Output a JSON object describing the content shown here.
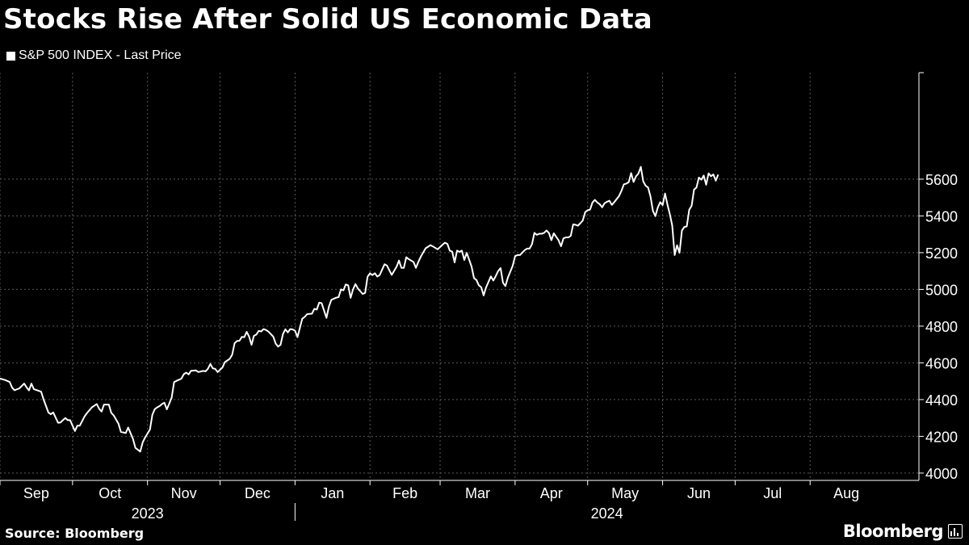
{
  "title": "Stocks Rise After Solid US Economic Data",
  "source": "Source: Bloomberg",
  "logo": "Bloomberg",
  "colors": {
    "background": "#000000",
    "line": "#ffffff",
    "grid": "#5a5a5a",
    "text": "#ffffff"
  },
  "chart_data": {
    "type": "line",
    "legend": "S&P 500 INDEX - Last Price",
    "legend_position": "top-left",
    "grid": true,
    "y_axis_side": "right",
    "ylim": [
      3960,
      6180
    ],
    "yticks": [
      4000,
      4200,
      4400,
      4600,
      4800,
      5000,
      5200,
      5400,
      5600
    ],
    "x_start_day": 0,
    "x_end_day": 380,
    "months": [
      {
        "label": "Sep",
        "day": 0
      },
      {
        "label": "Oct",
        "day": 30
      },
      {
        "label": "Nov",
        "day": 61
      },
      {
        "label": "Dec",
        "day": 91
      },
      {
        "label": "Jan",
        "day": 122
      },
      {
        "label": "Feb",
        "day": 153
      },
      {
        "label": "Mar",
        "day": 182
      },
      {
        "label": "Apr",
        "day": 213
      },
      {
        "label": "May",
        "day": 243
      },
      {
        "label": "Jun",
        "day": 274
      },
      {
        "label": "Jul",
        "day": 304
      },
      {
        "label": "Aug",
        "day": 335
      }
    ],
    "years": [
      {
        "label": "2023",
        "from_day": 0,
        "to_day": 122
      },
      {
        "label": "2024",
        "from_day": 122,
        "to_day": 380
      }
    ],
    "series": [
      {
        "name": "S&P 500 INDEX - Last Price",
        "points": [
          [
            0,
            4515
          ],
          [
            2,
            4507
          ],
          [
            4,
            4496
          ],
          [
            5,
            4465
          ],
          [
            6,
            4451
          ],
          [
            8,
            4461
          ],
          [
            10,
            4487
          ],
          [
            11,
            4467
          ],
          [
            12,
            4450
          ],
          [
            13,
            4487
          ],
          [
            14,
            4457
          ],
          [
            17,
            4443
          ],
          [
            18,
            4402
          ],
          [
            20,
            4330
          ],
          [
            21,
            4320
          ],
          [
            22,
            4330
          ],
          [
            24,
            4274
          ],
          [
            25,
            4275
          ],
          [
            26,
            4288
          ],
          [
            27,
            4300
          ],
          [
            28,
            4288
          ],
          [
            29,
            4288
          ],
          [
            31,
            4229
          ],
          [
            32,
            4258
          ],
          [
            33,
            4258
          ],
          [
            35,
            4309
          ],
          [
            36,
            4327
          ],
          [
            38,
            4358
          ],
          [
            40,
            4376
          ],
          [
            41,
            4350
          ],
          [
            42,
            4335
          ],
          [
            43,
            4373
          ],
          [
            45,
            4373
          ],
          [
            46,
            4328
          ],
          [
            47,
            4314
          ],
          [
            49,
            4269
          ],
          [
            50,
            4224
          ],
          [
            52,
            4218
          ],
          [
            53,
            4248
          ],
          [
            54,
            4217
          ],
          [
            55,
            4186
          ],
          [
            56,
            4137
          ],
          [
            58,
            4117
          ],
          [
            59,
            4167
          ],
          [
            60,
            4194
          ],
          [
            62,
            4237
          ],
          [
            63,
            4318
          ],
          [
            64,
            4348
          ],
          [
            65,
            4358
          ],
          [
            66,
            4365
          ],
          [
            67,
            4376
          ],
          [
            68,
            4383
          ],
          [
            69,
            4347
          ],
          [
            70,
            4378
          ],
          [
            71,
            4411
          ],
          [
            72,
            4495
          ],
          [
            73,
            4502
          ],
          [
            74,
            4508
          ],
          [
            75,
            4514
          ],
          [
            76,
            4538
          ],
          [
            77,
            4547
          ],
          [
            78,
            4537
          ],
          [
            79,
            4557
          ],
          [
            81,
            4559
          ],
          [
            82,
            4550
          ],
          [
            84,
            4556
          ],
          [
            85,
            4554
          ],
          [
            86,
            4568
          ],
          [
            87,
            4594
          ],
          [
            88,
            4570
          ],
          [
            89,
            4567
          ],
          [
            90,
            4550
          ],
          [
            92,
            4575
          ],
          [
            93,
            4604
          ],
          [
            95,
            4622
          ],
          [
            96,
            4644
          ],
          [
            97,
            4707
          ],
          [
            98,
            4719
          ],
          [
            99,
            4720
          ],
          [
            100,
            4741
          ],
          [
            101,
            4740
          ],
          [
            102,
            4769
          ],
          [
            103,
            4743
          ],
          [
            104,
            4698
          ],
          [
            105,
            4747
          ],
          [
            106,
            4754
          ],
          [
            107,
            4774
          ],
          [
            108,
            4771
          ],
          [
            109,
            4784
          ],
          [
            110,
            4779
          ],
          [
            111,
            4770
          ],
          [
            113,
            4743
          ],
          [
            114,
            4705
          ],
          [
            115,
            4689
          ],
          [
            116,
            4698
          ],
          [
            117,
            4757
          ],
          [
            118,
            4783
          ],
          [
            119,
            4766
          ],
          [
            120,
            4784
          ],
          [
            121,
            4782
          ],
          [
            122,
            4775
          ],
          [
            123,
            4740
          ],
          [
            125,
            4840
          ],
          [
            126,
            4850
          ],
          [
            127,
            4865
          ],
          [
            129,
            4868
          ],
          [
            130,
            4894
          ],
          [
            131,
            4890
          ],
          [
            132,
            4928
          ],
          [
            133,
            4925
          ],
          [
            135,
            4845
          ],
          [
            136,
            4906
          ],
          [
            137,
            4943
          ],
          [
            139,
            4955
          ],
          [
            140,
            4958
          ],
          [
            141,
            5000
          ],
          [
            142,
            4995
          ],
          [
            143,
            5027
          ],
          [
            144,
            5022
          ],
          [
            145,
            4954
          ],
          [
            146,
            5000
          ],
          [
            147,
            5029
          ],
          [
            148,
            5005
          ],
          [
            150,
            4975
          ],
          [
            151,
            4981
          ],
          [
            152,
            5069
          ],
          [
            153,
            5088
          ],
          [
            154,
            5078
          ],
          [
            155,
            5088
          ],
          [
            156,
            5070
          ],
          [
            157,
            5078
          ],
          [
            159,
            5137
          ],
          [
            160,
            5130
          ],
          [
            162,
            5079
          ],
          [
            164,
            5123
          ],
          [
            165,
            5157
          ],
          [
            166,
            5117
          ],
          [
            167,
            5117
          ],
          [
            168,
            5175
          ],
          [
            169,
            5165
          ],
          [
            171,
            5149
          ],
          [
            172,
            5117
          ],
          [
            173,
            5150
          ],
          [
            174,
            5178
          ],
          [
            176,
            5224
          ],
          [
            178,
            5241
          ],
          [
            179,
            5234
          ],
          [
            181,
            5218
          ],
          [
            183,
            5243
          ],
          [
            184,
            5254
          ],
          [
            185,
            5248
          ],
          [
            186,
            5211
          ],
          [
            187,
            5205
          ],
          [
            188,
            5147
          ],
          [
            189,
            5211
          ],
          [
            190,
            5204
          ],
          [
            191,
            5211
          ],
          [
            192,
            5160
          ],
          [
            193,
            5199
          ],
          [
            195,
            5124
          ],
          [
            196,
            5061
          ],
          [
            197,
            5051
          ],
          [
            198,
            5022
          ],
          [
            199,
            5011
          ],
          [
            200,
            4967
          ],
          [
            201,
            5010
          ],
          [
            203,
            5071
          ],
          [
            204,
            5048
          ],
          [
            205,
            5072
          ],
          [
            206,
            5100
          ],
          [
            207,
            5116
          ],
          [
            208,
            5036
          ],
          [
            209,
            5018
          ],
          [
            210,
            5064
          ],
          [
            212,
            5128
          ],
          [
            213,
            5181
          ],
          [
            214,
            5187
          ],
          [
            215,
            5187
          ],
          [
            217,
            5214
          ],
          [
            218,
            5222
          ],
          [
            219,
            5222
          ],
          [
            220,
            5246
          ],
          [
            221,
            5308
          ],
          [
            222,
            5297
          ],
          [
            223,
            5303
          ],
          [
            224,
            5303
          ],
          [
            225,
            5308
          ],
          [
            226,
            5321
          ],
          [
            227,
            5307
          ],
          [
            228,
            5268
          ],
          [
            229,
            5305
          ],
          [
            231,
            5267
          ],
          [
            232,
            5235
          ],
          [
            233,
            5278
          ],
          [
            234,
            5283
          ],
          [
            235,
            5283
          ],
          [
            236,
            5291
          ],
          [
            237,
            5354
          ],
          [
            238,
            5352
          ],
          [
            239,
            5347
          ],
          [
            240,
            5360
          ],
          [
            241,
            5375
          ],
          [
            242,
            5421
          ],
          [
            243,
            5431
          ],
          [
            244,
            5434
          ],
          [
            245,
            5473
          ],
          [
            246,
            5487
          ],
          [
            247,
            5473
          ],
          [
            248,
            5464
          ],
          [
            249,
            5447
          ],
          [
            250,
            5469
          ],
          [
            251,
            5477
          ],
          [
            252,
            5483
          ],
          [
            253,
            5460
          ],
          [
            254,
            5475
          ],
          [
            256,
            5509
          ],
          [
            257,
            5537
          ],
          [
            258,
            5572
          ],
          [
            259,
            5576
          ],
          [
            260,
            5584
          ],
          [
            261,
            5633
          ],
          [
            262,
            5585
          ],
          [
            263,
            5615
          ],
          [
            264,
            5631
          ],
          [
            265,
            5667
          ],
          [
            266,
            5588
          ],
          [
            267,
            5564
          ],
          [
            268,
            5555
          ],
          [
            269,
            5505
          ],
          [
            270,
            5427
          ],
          [
            271,
            5399
          ],
          [
            272,
            5446
          ],
          [
            273,
            5475
          ],
          [
            274,
            5459
          ],
          [
            275,
            5522
          ],
          [
            276,
            5463
          ],
          [
            277,
            5410
          ],
          [
            278,
            5347
          ],
          [
            279,
            5187
          ],
          [
            280,
            5240
          ],
          [
            281,
            5199
          ],
          [
            282,
            5321
          ],
          [
            283,
            5340
          ],
          [
            284,
            5343
          ],
          [
            285,
            5433
          ],
          [
            286,
            5455
          ],
          [
            287,
            5543
          ],
          [
            288,
            5555
          ],
          [
            289,
            5609
          ],
          [
            290,
            5597
          ],
          [
            291,
            5620
          ],
          [
            292,
            5570
          ],
          [
            293,
            5632
          ],
          [
            294,
            5616
          ],
          [
            295,
            5626
          ],
          [
            296,
            5592
          ],
          [
            297,
            5625
          ]
        ]
      }
    ]
  }
}
